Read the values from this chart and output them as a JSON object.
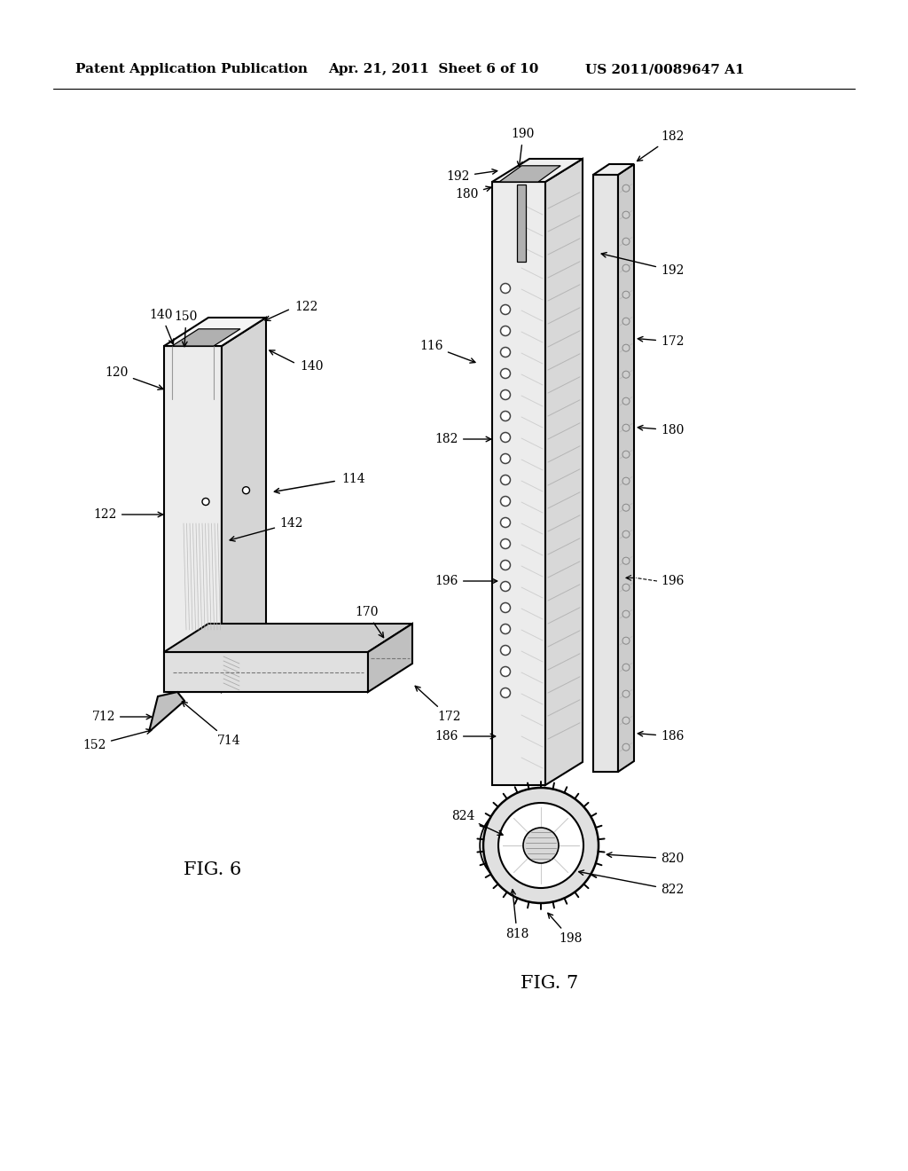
{
  "bg_color": "#ffffff",
  "header_text": "Patent Application Publication",
  "header_date": "Apr. 21, 2011  Sheet 6 of 10",
  "header_patent": "US 2011/0089647 A1",
  "fig6_label": "FIG. 6",
  "fig7_label": "FIG. 7",
  "lc": "#000000",
  "gray1": "#e8e8e8",
  "gray2": "#d0d0d0",
  "gray3": "#c0c0c0",
  "gray_dark": "#888888",
  "gray_hatch": "#aaaaaa"
}
